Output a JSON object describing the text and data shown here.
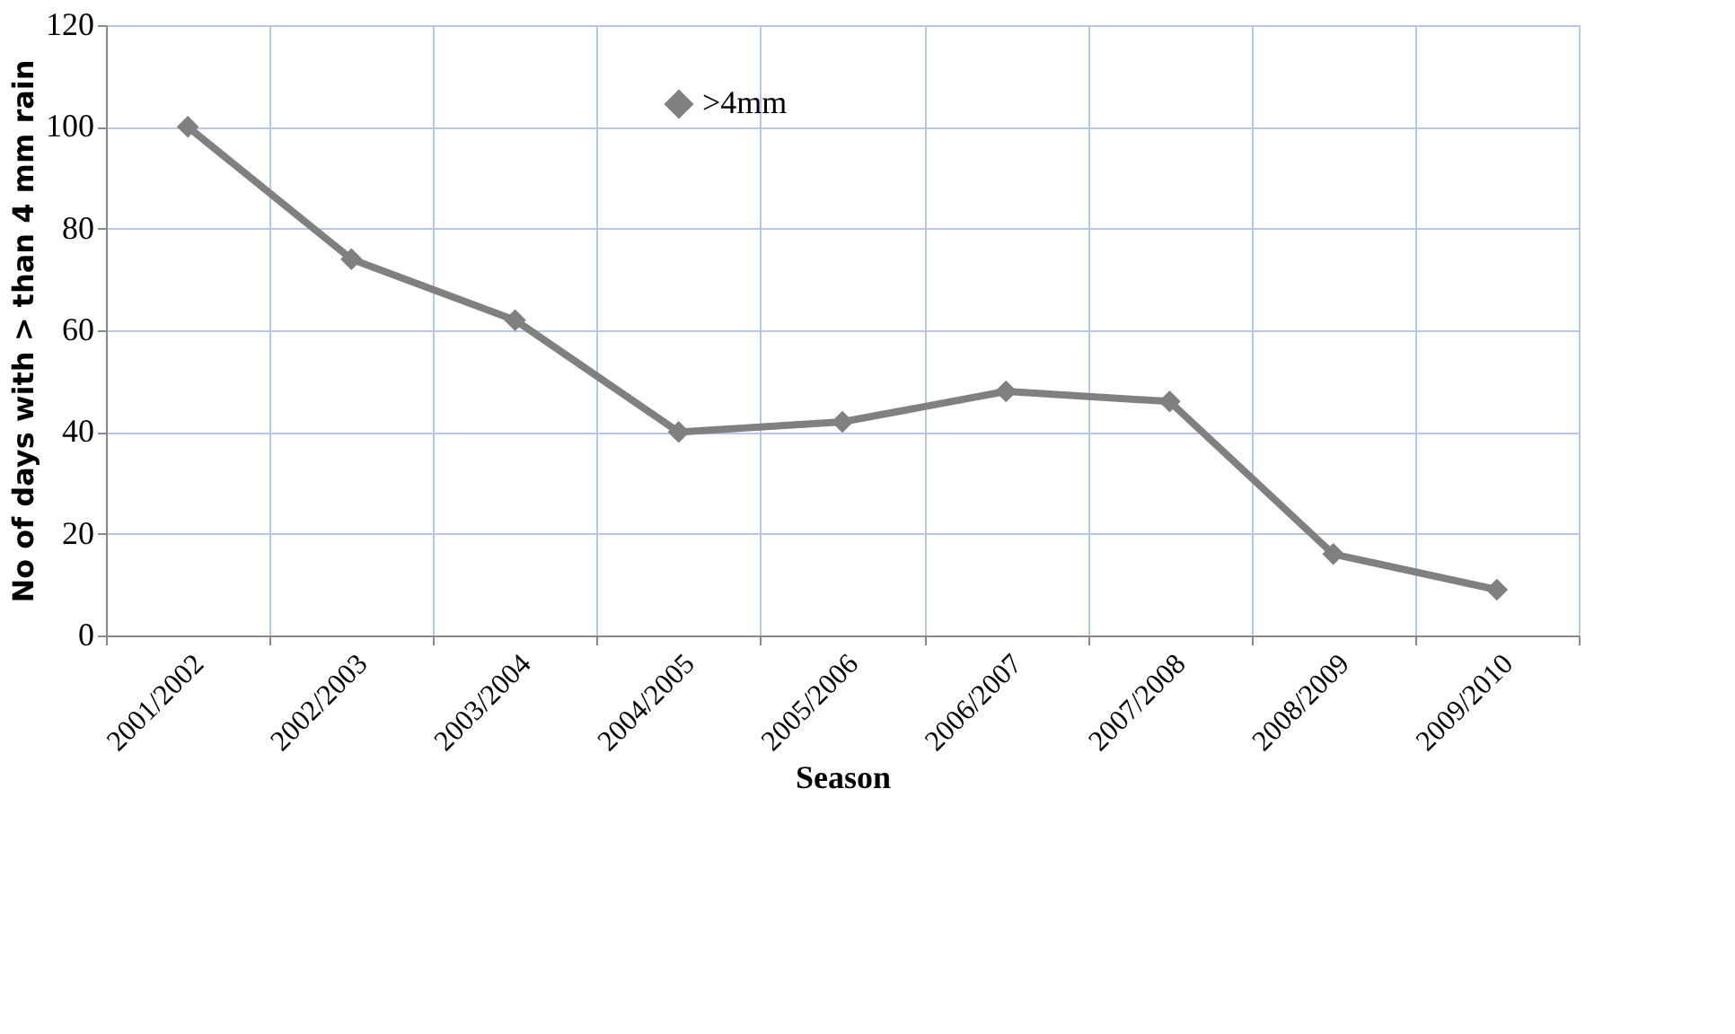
{
  "chart_data": {
    "type": "line",
    "xlabel": "Season",
    "ylabel": "No of days with > than 4 mm rain",
    "categories": [
      "2001/2002",
      "2002/2003",
      "2003/2004",
      "2004/2005",
      "2005/2006",
      "2006/2007",
      "2007/2008",
      "2008/2009",
      "2009/2010"
    ],
    "series": [
      {
        "name": ">4mm",
        "color": "#808080",
        "values": [
          100,
          74,
          62,
          40,
          42,
          48,
          46,
          16,
          9
        ]
      }
    ],
    "ylim": [
      0,
      120
    ],
    "yticks": [
      0,
      20,
      40,
      60,
      80,
      100,
      120
    ],
    "grid": true,
    "legend": "top",
    "marker": "diamond",
    "line_style": "solid"
  }
}
